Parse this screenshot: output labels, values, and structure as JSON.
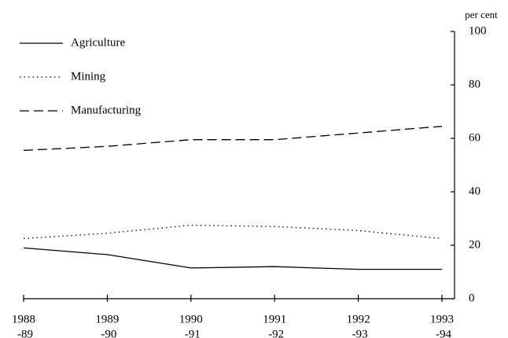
{
  "chart_data": {
    "type": "line",
    "y_label": "per cent",
    "categories": [
      [
        "1988",
        "-89"
      ],
      [
        "1989",
        "-90"
      ],
      [
        "1990",
        "-91"
      ],
      [
        "1991",
        "-92"
      ],
      [
        "1992",
        "-93"
      ],
      [
        "1993",
        "-94"
      ]
    ],
    "series": [
      {
        "name": "Agriculture",
        "color": "#000000",
        "style": "solid",
        "values": [
          19,
          16.5,
          11.5,
          12,
          11,
          11
        ]
      },
      {
        "name": "Mining",
        "color": "#000000",
        "style": "dotted",
        "values": [
          22.5,
          24.5,
          27.5,
          27,
          25.5,
          22.5
        ]
      },
      {
        "name": "Manufacturing",
        "color": "#000000",
        "style": "dashed",
        "values": [
          55.5,
          57,
          59.5,
          59.5,
          62,
          64.5
        ]
      }
    ],
    "ylim": [
      0,
      100
    ],
    "yticks": [
      0,
      20,
      40,
      60,
      80,
      100
    ],
    "y_axis_side": "right",
    "legend": "upper left"
  }
}
